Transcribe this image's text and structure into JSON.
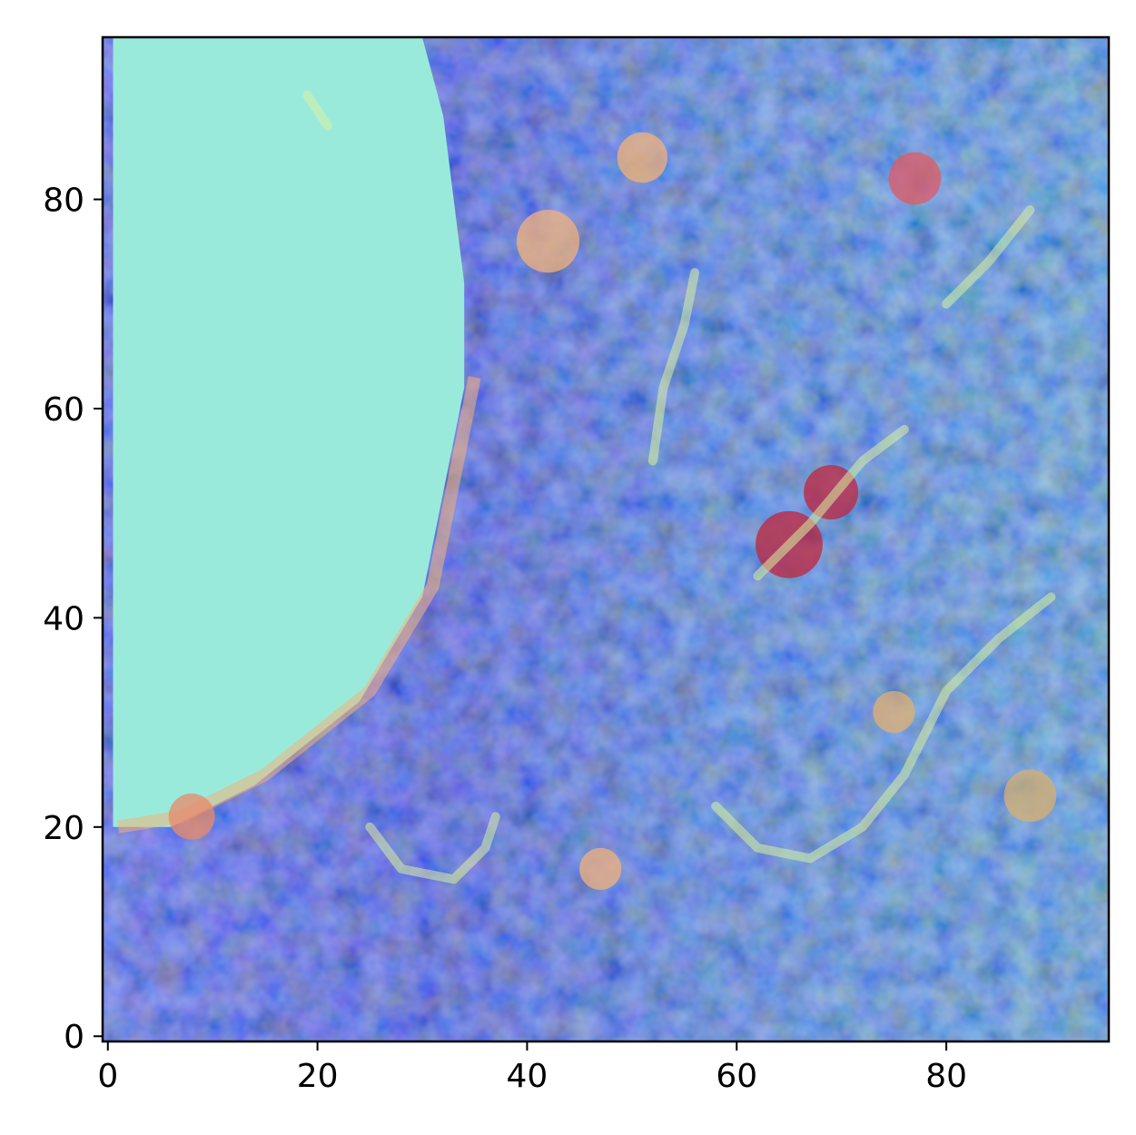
{
  "chart_data": {
    "type": "heatmap",
    "title": "",
    "xlabel": "",
    "ylabel": "",
    "xlim": [
      -0.5,
      95.5
    ],
    "ylim": [
      95.5,
      -0.5
    ],
    "image_size": [
      96,
      96
    ],
    "x_ticks": [
      0,
      20,
      40,
      60,
      80
    ],
    "y_ticks": [
      0,
      20,
      40,
      60,
      80
    ],
    "x_tick_labels": [
      "0",
      "20",
      "40",
      "60",
      "80"
    ],
    "y_tick_labels": [
      "0",
      "20",
      "40",
      "60",
      "80"
    ],
    "colormap": "jet overlay on image (semi-transparent)",
    "grid": false,
    "colors": {
      "low": "#2a1fd0",
      "mid": "#8fe6da",
      "high": "#f2b27a",
      "peak": "#c0243c",
      "left_region": "#9aeadb",
      "left_edge": "#f0d060"
    }
  }
}
